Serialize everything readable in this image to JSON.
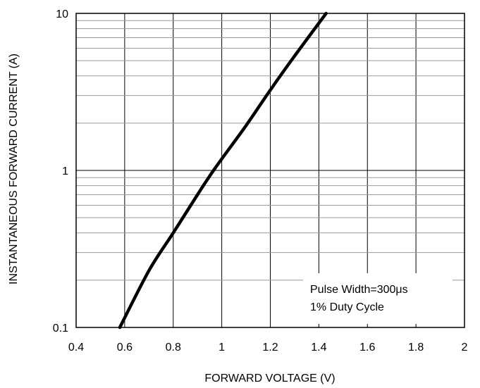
{
  "chart_data": {
    "type": "line",
    "title": "",
    "xlabel": "FORWARD VOLTAGE (V)",
    "ylabel": "INSTANTANEOUS FORWARD CURRENT (A)",
    "xlim": [
      0.4,
      2
    ],
    "ylim": [
      0.1,
      10
    ],
    "yscale": "log",
    "grid": true,
    "x_ticks": [
      0.4,
      0.6,
      0.8,
      1,
      1.2,
      1.4,
      1.6,
      1.8,
      2
    ],
    "x_tick_labels": [
      "0.4",
      "0.6",
      "0.8",
      "1",
      "1.2",
      "1.4",
      "1.6",
      "1.8",
      "2"
    ],
    "y_ticks": [
      0.1,
      1,
      10
    ],
    "y_tick_labels": [
      "0.1",
      "1",
      "10"
    ],
    "series": [
      {
        "x": [
          0.58,
          0.7,
          0.8,
          0.9,
          0.97,
          1.1,
          1.2,
          1.3,
          1.43
        ],
        "y": [
          0.1,
          0.23,
          0.4,
          0.7,
          1.02,
          1.93,
          3.25,
          5.35,
          10
        ]
      }
    ],
    "annotations": [
      "Pulse Width=300μs",
      "1% Duty Cycle"
    ]
  }
}
